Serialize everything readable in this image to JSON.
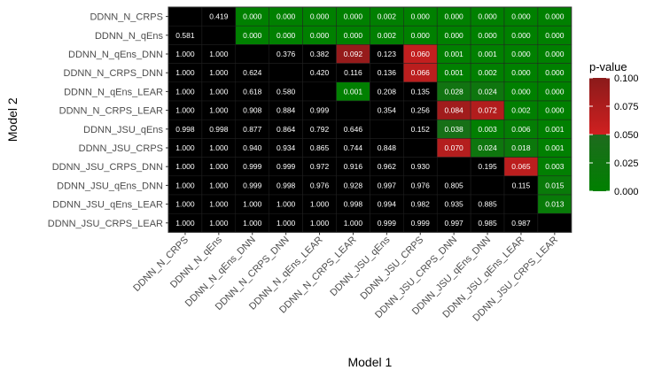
{
  "chart_data": {
    "type": "heatmap",
    "xlabel": "Model 1",
    "ylabel": "Model 2",
    "models": [
      "DDNN_N_CRPS",
      "DDNN_N_qEns",
      "DDNN_N_qEns_DNN",
      "DDNN_N_CRPS_DNN",
      "DDNN_N_qEns_LEAR",
      "DDNN_N_CRPS_LEAR",
      "DDNN_JSU_qEns",
      "DDNN_JSU_CRPS",
      "DDNN_JSU_CRPS_DNN",
      "DDNN_JSU_qEns_DNN",
      "DDNN_JSU_qEns_LEAR",
      "DDNN_JSU_CRPS_LEAR"
    ],
    "values": [
      [
        null,
        "0.419",
        "0.000",
        "0.000",
        "0.000",
        "0.000",
        "0.002",
        "0.000",
        "0.000",
        "0.000",
        "0.000",
        "0.000"
      ],
      [
        "0.581",
        null,
        "0.000",
        "0.000",
        "0.000",
        "0.000",
        "0.002",
        "0.000",
        "0.000",
        "0.000",
        "0.000",
        "0.000"
      ],
      [
        "1.000",
        "1.000",
        null,
        "0.376",
        "0.382",
        "0.092",
        "0.123",
        "0.060",
        "0.001",
        "0.001",
        "0.000",
        "0.000"
      ],
      [
        "1.000",
        "1.000",
        "0.624",
        null,
        "0.420",
        "0.116",
        "0.136",
        "0.066",
        "0.001",
        "0.002",
        "0.000",
        "0.000"
      ],
      [
        "1.000",
        "1.000",
        "0.618",
        "0.580",
        null,
        "0.001",
        "0.208",
        "0.135",
        "0.028",
        "0.024",
        "0.000",
        "0.000"
      ],
      [
        "1.000",
        "1.000",
        "0.908",
        "0.884",
        "0.999",
        null,
        "0.354",
        "0.256",
        "0.084",
        "0.072",
        "0.002",
        "0.000"
      ],
      [
        "0.998",
        "0.998",
        "0.877",
        "0.864",
        "0.792",
        "0.646",
        null,
        "0.152",
        "0.038",
        "0.003",
        "0.006",
        "0.001"
      ],
      [
        "1.000",
        "1.000",
        "0.940",
        "0.934",
        "0.865",
        "0.744",
        "0.848",
        null,
        "0.070",
        "0.024",
        "0.018",
        "0.001"
      ],
      [
        "1.000",
        "1.000",
        "0.999",
        "0.999",
        "0.972",
        "0.916",
        "0.962",
        "0.930",
        null,
        "0.195",
        "0.065",
        "0.003"
      ],
      [
        "1.000",
        "1.000",
        "0.999",
        "0.998",
        "0.976",
        "0.928",
        "0.997",
        "0.976",
        "0.805",
        null,
        "0.115",
        "0.015"
      ],
      [
        "1.000",
        "1.000",
        "1.000",
        "1.000",
        "1.000",
        "0.998",
        "0.994",
        "0.982",
        "0.935",
        "0.885",
        null,
        "0.013"
      ],
      [
        "1.000",
        "1.000",
        "1.000",
        "1.000",
        "1.000",
        "1.000",
        "0.999",
        "0.999",
        "0.997",
        "0.985",
        "0.987",
        null
      ]
    ],
    "legend": {
      "title": "p-value",
      "ticks": [
        "0.000",
        "0.025",
        "0.050",
        "0.075",
        "0.100"
      ],
      "range": [
        0,
        0.1
      ],
      "low_colors": [
        "#008000",
        "#1e6b1e"
      ],
      "high_colors": [
        "#d02020",
        "#8b1a1a"
      ]
    },
    "colors": {
      "above_range": "#000000",
      "diagonal": "#000000",
      "grid": "#222222",
      "panel_border": "#333333"
    }
  }
}
